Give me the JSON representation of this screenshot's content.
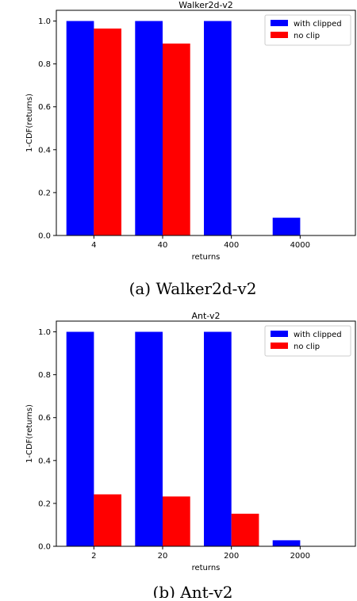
{
  "charts": [
    {
      "caption": "(a) Walker2d-v2"
    },
    {
      "caption": "(b) Ant-v2"
    }
  ],
  "chart_data": [
    {
      "type": "bar",
      "title": "Walker2d-v2",
      "xlabel": "returns",
      "ylabel": "1-CDF(returns)",
      "categories": [
        "4",
        "40",
        "400",
        "4000"
      ],
      "ylim": [
        0,
        1.05
      ],
      "yticks": [
        "0.0",
        "0.2",
        "0.4",
        "0.6",
        "0.8",
        "1.0"
      ],
      "grid": false,
      "legend_position": "top-right",
      "series": [
        {
          "name": "with clipped",
          "color": "#0000ff",
          "values": [
            1.0,
            1.0,
            1.0,
            0.083
          ]
        },
        {
          "name": "no clip",
          "color": "#ff0000",
          "values": [
            0.965,
            0.895,
            0.0,
            0.0
          ]
        }
      ]
    },
    {
      "type": "bar",
      "title": "Ant-v2",
      "xlabel": "returns",
      "ylabel": "1-CDF(returns)",
      "categories": [
        "2",
        "20",
        "200",
        "2000"
      ],
      "ylim": [
        0,
        1.05
      ],
      "yticks": [
        "0.0",
        "0.2",
        "0.4",
        "0.6",
        "0.8",
        "1.0"
      ],
      "grid": false,
      "legend_position": "top-right",
      "series": [
        {
          "name": "with clipped",
          "color": "#0000ff",
          "values": [
            1.0,
            1.0,
            1.0,
            0.028
          ]
        },
        {
          "name": "no clip",
          "color": "#ff0000",
          "values": [
            0.242,
            0.232,
            0.152,
            0.0
          ]
        }
      ]
    }
  ]
}
